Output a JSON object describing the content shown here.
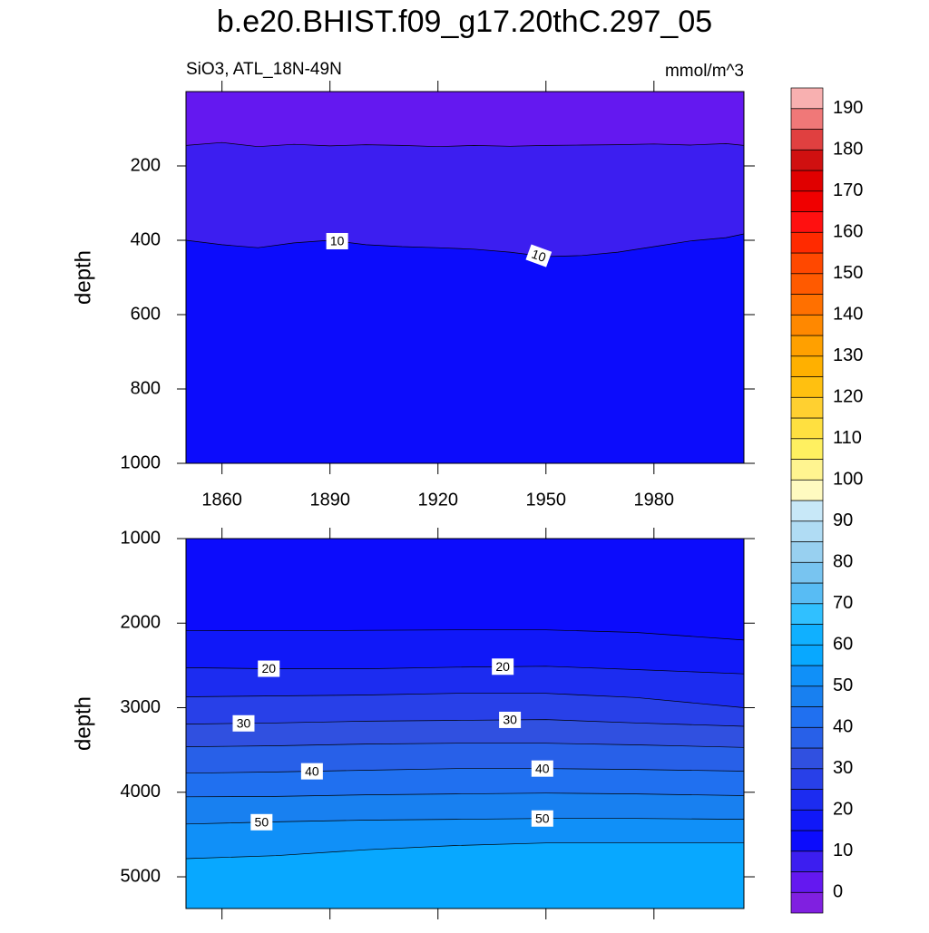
{
  "title": "b.e20.BHIST.f09_g17.20thC.297_05",
  "chart_data": [
    {
      "type": "contour",
      "left_label": "SiO3, ATL_18N-49N",
      "right_label": "mmol/m^3",
      "ylabel": "depth",
      "xlim": [
        1850,
        2005
      ],
      "ylim": [
        0,
        1000
      ],
      "y_reversed": true,
      "xticks": [
        1860,
        1890,
        1920,
        1950,
        1980
      ],
      "show_xtick_labels": true,
      "yticks": [
        200,
        400,
        600,
        800,
        1000
      ],
      "contours": [
        {
          "level": 5,
          "x": [
            1850,
            1860,
            1870,
            1880,
            1890,
            1900,
            1910,
            1920,
            1930,
            1940,
            1950,
            1960,
            1970,
            1980,
            1990,
            2000,
            2005
          ],
          "depth": [
            145,
            137,
            148,
            142,
            146,
            143,
            145,
            148,
            145,
            147,
            145,
            144,
            143,
            141,
            144,
            140,
            145
          ]
        },
        {
          "level": 10,
          "x": [
            1850,
            1860,
            1870,
            1880,
            1890,
            1900,
            1910,
            1920,
            1930,
            1940,
            1950,
            1960,
            1970,
            1980,
            1990,
            2000,
            2005
          ],
          "depth": [
            400,
            412,
            420,
            407,
            400,
            412,
            417,
            420,
            424,
            432,
            444,
            441,
            432,
            417,
            402,
            393,
            383
          ]
        }
      ],
      "contour_labels": [
        10,
        10
      ]
    },
    {
      "type": "contour",
      "ylabel": "depth",
      "xlim": [
        1850,
        2005
      ],
      "ylim": [
        1000,
        5375
      ],
      "y_reversed": true,
      "xticks": [
        1860,
        1890,
        1920,
        1950,
        1980
      ],
      "show_xtick_labels": false,
      "yticks": [
        1000,
        2000,
        3000,
        4000,
        5000
      ],
      "contours": [
        {
          "level": 15,
          "x": [
            1850,
            1875,
            1900,
            1925,
            1950,
            1975,
            2005
          ],
          "depth": [
            2086,
            2090,
            2085,
            2080,
            2080,
            2110,
            2200
          ]
        },
        {
          "level": 20,
          "x": [
            1850,
            1875,
            1900,
            1925,
            1950,
            1975,
            2005
          ],
          "depth": [
            2527,
            2540,
            2540,
            2520,
            2510,
            2550,
            2600
          ]
        },
        {
          "level": 25,
          "x": [
            1850,
            1875,
            1900,
            1925,
            1950,
            1975,
            2005
          ],
          "depth": [
            2871,
            2860,
            2850,
            2830,
            2830,
            2880,
            3000
          ]
        },
        {
          "level": 30,
          "x": [
            1850,
            1875,
            1900,
            1925,
            1950,
            1975,
            2005
          ],
          "depth": [
            3194,
            3180,
            3160,
            3150,
            3140,
            3180,
            3220
          ]
        },
        {
          "level": 35,
          "x": [
            1850,
            1875,
            1900,
            1925,
            1950,
            1975,
            2005
          ],
          "depth": [
            3462,
            3450,
            3430,
            3420,
            3420,
            3440,
            3470
          ]
        },
        {
          "level": 40,
          "x": [
            1850,
            1875,
            1900,
            1925,
            1950,
            1975,
            2005
          ],
          "depth": [
            3774,
            3760,
            3740,
            3720,
            3720,
            3730,
            3750
          ]
        },
        {
          "level": 45,
          "x": [
            1850,
            1875,
            1900,
            1925,
            1950,
            1975,
            2005
          ],
          "depth": [
            4054,
            4050,
            4030,
            4020,
            4010,
            4020,
            4040
          ]
        },
        {
          "level": 50,
          "x": [
            1850,
            1875,
            1900,
            1925,
            1950,
            1975,
            2005
          ],
          "depth": [
            4376,
            4350,
            4330,
            4320,
            4310,
            4310,
            4320
          ]
        },
        {
          "level": 55,
          "x": [
            1850,
            1875,
            1900,
            1925,
            1950,
            1975,
            2005
          ],
          "depth": [
            4785,
            4750,
            4680,
            4630,
            4600,
            4600,
            4600
          ]
        }
      ],
      "contour_labels": [
        20,
        20,
        30,
        30,
        40,
        40,
        50,
        50
      ]
    }
  ],
  "colorbar": {
    "lim": [
      -5,
      195
    ],
    "ticks": [
      0,
      10,
      20,
      30,
      40,
      50,
      60,
      70,
      80,
      90,
      100,
      110,
      120,
      130,
      140,
      150,
      160,
      170,
      180,
      190
    ],
    "colors": [
      "#8020e0",
      "#6418f0",
      "#3c1ef0",
      "#0c0cfc",
      "#1018f8",
      "#1c2cf0",
      "#2840e8",
      "#3050e0",
      "#2860e8",
      "#2070f0",
      "#1880f0",
      "#1090f8",
      "#08a8ff",
      "#10b0ff",
      "#30c0ff",
      "#58bcf4",
      "#78c4f0",
      "#98d0f0",
      "#b0dcf4",
      "#c8e8f8",
      "#fffac0",
      "#fff490",
      "#fff060",
      "#ffe040",
      "#ffd030",
      "#ffc010",
      "#ffb000",
      "#ffa000",
      "#ff8800",
      "#ff7000",
      "#ff5a00",
      "#ff4800",
      "#ff2a00",
      "#ff1010",
      "#f00000",
      "#e00000",
      "#d01010",
      "#e04040",
      "#f07878",
      "#f8b0b0"
    ]
  }
}
